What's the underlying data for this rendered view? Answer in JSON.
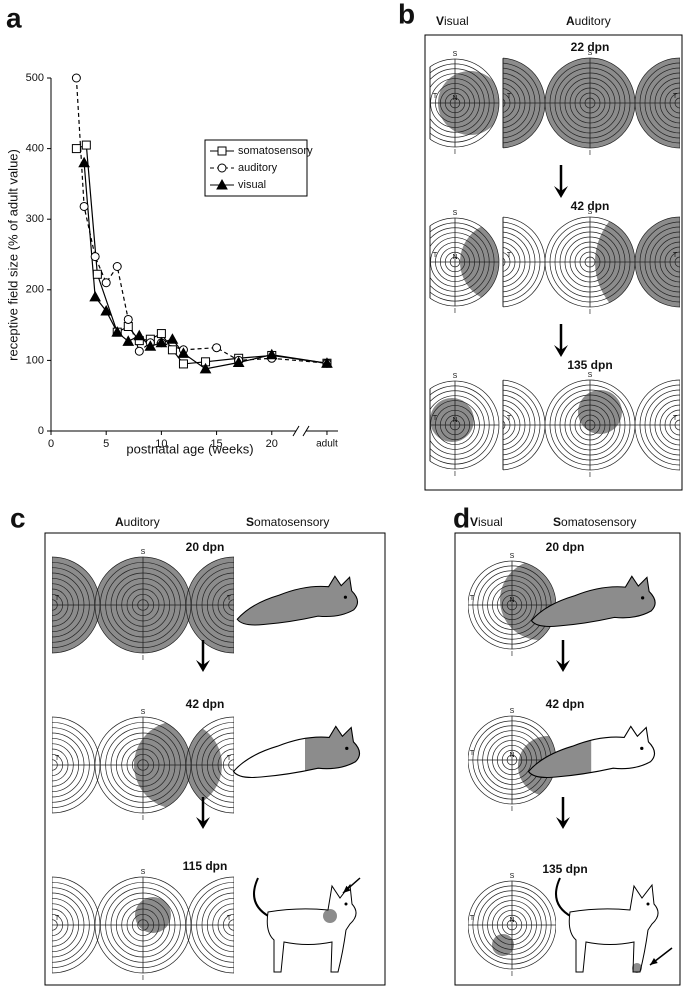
{
  "chart_data": {
    "type": "line",
    "panel_label": "a",
    "x_label": "postnatal age (weeks)",
    "y_label": "receptive field size (% of adult value)",
    "xlim": [
      0,
      26
    ],
    "ylim": [
      0,
      500
    ],
    "xticks": [
      0,
      5,
      10,
      15,
      20,
      {
        "value": 25,
        "label": "adult"
      }
    ],
    "yticks": [
      0,
      100,
      200,
      300,
      400,
      500
    ],
    "legend": "center right",
    "series": [
      {
        "name": "somatosensory",
        "color": "#000000",
        "line_style": "solid",
        "marker": "square",
        "x": [
          2.3,
          3.2,
          4.2,
          6,
          7,
          8,
          9,
          10,
          11,
          12,
          14,
          17,
          20,
          25
        ],
        "values": [
          400,
          405,
          222,
          140,
          148,
          128,
          130,
          138,
          115,
          95,
          98,
          103,
          107,
          96
        ]
      },
      {
        "name": "auditory",
        "color": "#000000",
        "line_style": "dashed",
        "marker": "circle",
        "x": [
          2.3,
          3,
          4,
          5,
          6,
          7,
          8,
          9,
          10,
          12,
          15,
          17,
          20,
          25
        ],
        "values": [
          500,
          318,
          247,
          210,
          233,
          158,
          113,
          125,
          125,
          115,
          118,
          100,
          103,
          96
        ]
      },
      {
        "name": "visual",
        "color": "#000000",
        "line_style": "solid",
        "marker": "triangle",
        "x": [
          3,
          4,
          5,
          6,
          7,
          8,
          9,
          10,
          11,
          12,
          14,
          17,
          20,
          25
        ],
        "values": [
          380,
          190,
          170,
          140,
          127,
          135,
          120,
          125,
          130,
          110,
          88,
          97,
          108,
          96
        ]
      }
    ]
  },
  "panel_b": {
    "letter": "b",
    "columns": [
      "Visual",
      "Auditory"
    ],
    "stages": [
      "22 dpn",
      "42 dpn",
      "135 dpn"
    ]
  },
  "panel_c": {
    "letter": "c",
    "columns": [
      "Auditory",
      "Somatosensory"
    ],
    "stages": [
      "20 dpn",
      "42 dpn",
      "115 dpn"
    ]
  },
  "panel_d": {
    "letter": "d",
    "columns": [
      "Visual",
      "Somatosensory"
    ],
    "stages": [
      "20 dpn",
      "42 dpn",
      "135 dpn"
    ]
  },
  "field_labels": {
    "superior": "S",
    "inferior": "I",
    "temporal": "T",
    "nasal": "N"
  }
}
